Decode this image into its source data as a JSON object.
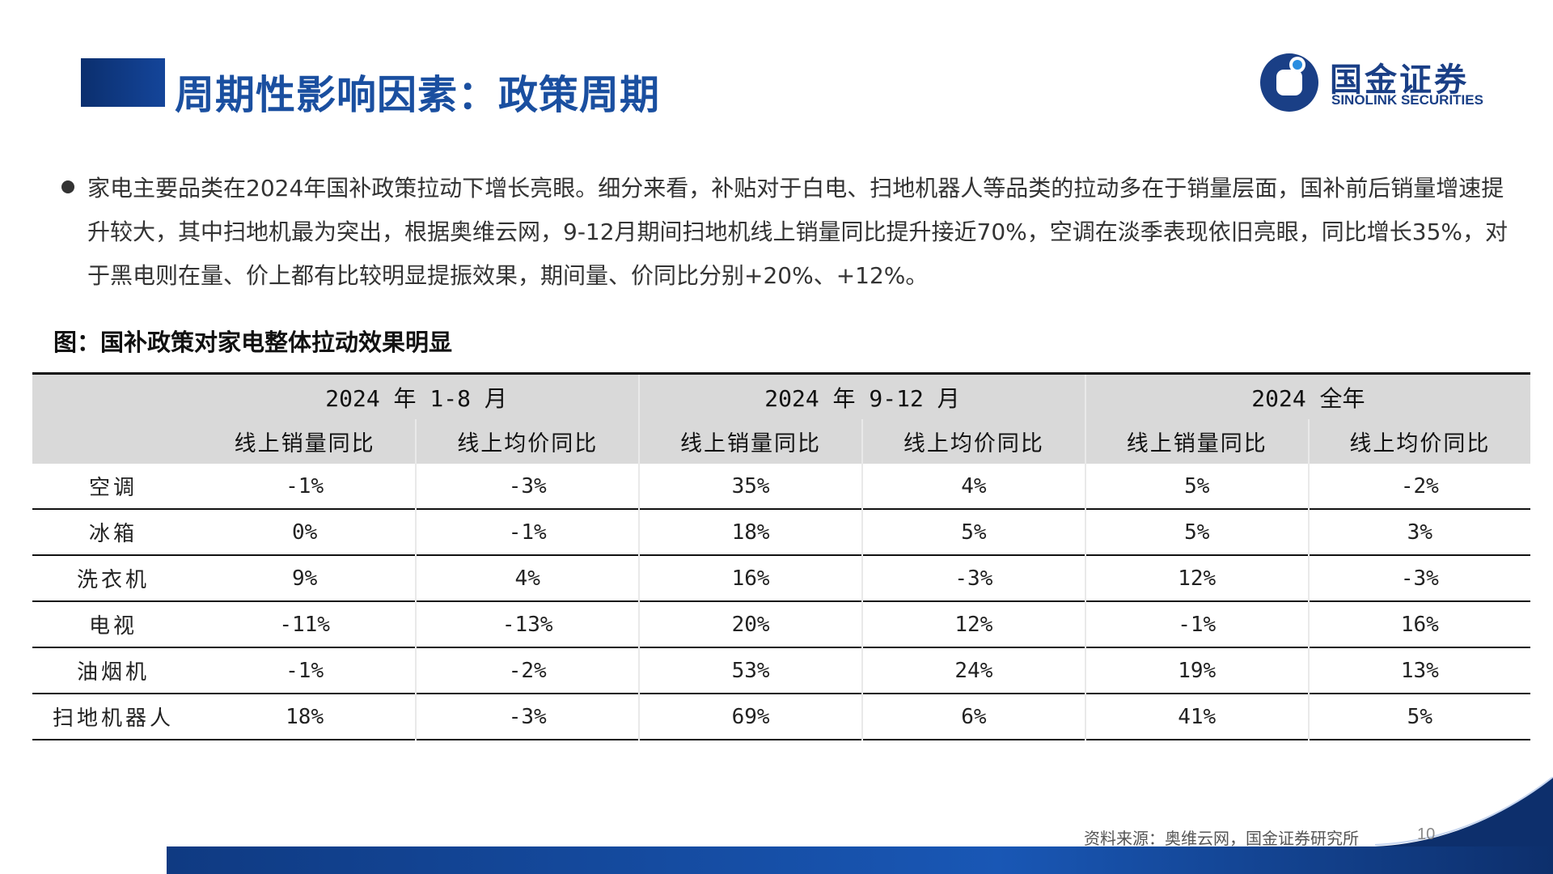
{
  "header": {
    "title": "周期性影响因素：政策周期",
    "logo_cn": "国金证券",
    "logo_en": "SINOLINK SECURITIES"
  },
  "bullet": {
    "text": "家电主要品类在2024年国补政策拉动下增长亮眼。细分来看，补贴对于白电、扫地机器人等品类的拉动多在于销量层面，国补前后销量增速提升较大，其中扫地机最为突出，根据奥维云网，9-12月期间扫地机线上销量同比提升接近70%，空调在淡季表现依旧亮眼，同比增长35%，对于黑电则在量、价上都有比较明显提振效果，期间量、价同比分别+20%、+12%。"
  },
  "figure": {
    "caption": "图：国补政策对家电整体拉动效果明显"
  },
  "table": {
    "groups": [
      "2024 年 1-8 月",
      "2024 年 9-12 月",
      "2024 全年"
    ],
    "sub_headers": [
      "线上销量同比",
      "线上均价同比",
      "线上销量同比",
      "线上均价同比",
      "线上销量同比",
      "线上均价同比"
    ],
    "rows": [
      {
        "name": "空调",
        "values": [
          "-1%",
          "-3%",
          "35%",
          "4%",
          "5%",
          "-2%"
        ]
      },
      {
        "name": "冰箱",
        "values": [
          "0%",
          "-1%",
          "18%",
          "5%",
          "5%",
          "3%"
        ]
      },
      {
        "name": "洗衣机",
        "values": [
          "9%",
          "4%",
          "16%",
          "-3%",
          "12%",
          "-3%"
        ]
      },
      {
        "name": "电视",
        "values": [
          "-11%",
          "-13%",
          "20%",
          "12%",
          "-1%",
          "16%"
        ]
      },
      {
        "name": "油烟机",
        "values": [
          "-1%",
          "-2%",
          "53%",
          "24%",
          "19%",
          "13%"
        ]
      },
      {
        "name": "扫地机器人",
        "values": [
          "18%",
          "-3%",
          "69%",
          "6%",
          "41%",
          "5%"
        ]
      }
    ]
  },
  "footer": {
    "source": "资料来源：奥维云网，国金证券研究所",
    "page_number": "10"
  },
  "colors": {
    "brand_blue": "#1a4fa0",
    "header_gray": "#d9d9d9"
  }
}
